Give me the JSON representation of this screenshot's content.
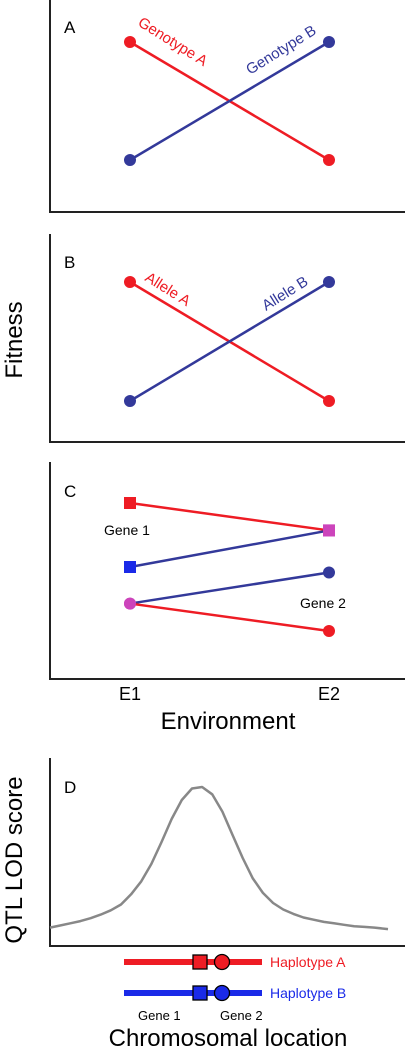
{
  "colors": {
    "red": "#ee1c24",
    "navy": "#33399a",
    "blue": "#1a2ae8",
    "magenta": "#cc44bb",
    "gray": "#888888",
    "axis": "#222222"
  },
  "shared": {
    "y_label": "Fitness",
    "x_label": "Environment",
    "x_ticks": [
      "E1",
      "E2"
    ]
  },
  "chart_data": [
    {
      "panel": "A",
      "type": "line",
      "x": [
        "E1",
        "E2"
      ],
      "series": [
        {
          "name": "Genotype A",
          "color": "#ee1c24",
          "marker": "circle",
          "values": [
            0.9,
            0.15
          ]
        },
        {
          "name": "Genotype B",
          "color": "#33399a",
          "marker": "circle",
          "values": [
            0.15,
            0.9
          ]
        }
      ]
    },
    {
      "panel": "B",
      "type": "line",
      "x": [
        "E1",
        "E2"
      ],
      "series": [
        {
          "name": "Allele A",
          "color": "#ee1c24",
          "marker": "circle",
          "values": [
            0.9,
            0.15
          ]
        },
        {
          "name": "Allele B",
          "color": "#33399a",
          "marker": "circle",
          "values": [
            0.15,
            0.9
          ]
        }
      ]
    },
    {
      "panel": "C",
      "type": "line",
      "x": [
        "E1",
        "E2"
      ],
      "annotations": [
        "Gene 1",
        "Gene 2"
      ],
      "series": [
        {
          "color": "#ee1c24",
          "values": [
            0.9,
            0.75
          ],
          "markers": [
            {
              "shape": "square",
              "color": "#ee1c24"
            },
            {
              "shape": "square",
              "color": "#cc44bb"
            }
          ]
        },
        {
          "color": "#33399a",
          "values": [
            0.55,
            0.75
          ],
          "markers": [
            {
              "shape": "square",
              "color": "#1a2ae8"
            },
            {
              "shape": "square",
              "color": "#cc44bb"
            }
          ]
        },
        {
          "color": "#33399a",
          "values": [
            0.35,
            0.52
          ],
          "markers": [
            {
              "shape": "circle",
              "color": "#cc44bb"
            },
            {
              "shape": "circle",
              "color": "#33399a"
            }
          ]
        },
        {
          "color": "#ee1c24",
          "values": [
            0.35,
            0.2
          ],
          "markers": [
            {
              "shape": "circle",
              "color": "#cc44bb"
            },
            {
              "shape": "circle",
              "color": "#ee1c24"
            }
          ]
        }
      ]
    },
    {
      "panel": "D",
      "type": "line",
      "ylabel": "QTL LOD score",
      "xlabel": "Chromosomal location",
      "curve": {
        "color": "#888888",
        "x": [
          0,
          0.03,
          0.06,
          0.09,
          0.12,
          0.15,
          0.18,
          0.21,
          0.24,
          0.27,
          0.3,
          0.33,
          0.36,
          0.39,
          0.42,
          0.45,
          0.48,
          0.51,
          0.54,
          0.57,
          0.6,
          0.63,
          0.66,
          0.69,
          0.72,
          0.75,
          0.78,
          0.81,
          0.84,
          0.87,
          0.9,
          0.93,
          0.96,
          1.0
        ],
        "y": [
          0.03,
          0.045,
          0.06,
          0.075,
          0.095,
          0.12,
          0.15,
          0.19,
          0.26,
          0.35,
          0.47,
          0.62,
          0.78,
          0.91,
          0.99,
          1.0,
          0.95,
          0.83,
          0.67,
          0.51,
          0.37,
          0.27,
          0.2,
          0.155,
          0.125,
          0.1,
          0.085,
          0.07,
          0.06,
          0.05,
          0.04,
          0.035,
          0.03,
          0.02
        ]
      },
      "haplotypes": [
        {
          "name": "Haplotype A",
          "color": "#ee1c24"
        },
        {
          "name": "Haplotype B",
          "color": "#1a2ae8"
        }
      ],
      "gene_labels": [
        "Gene 1",
        "Gene 2"
      ]
    }
  ]
}
